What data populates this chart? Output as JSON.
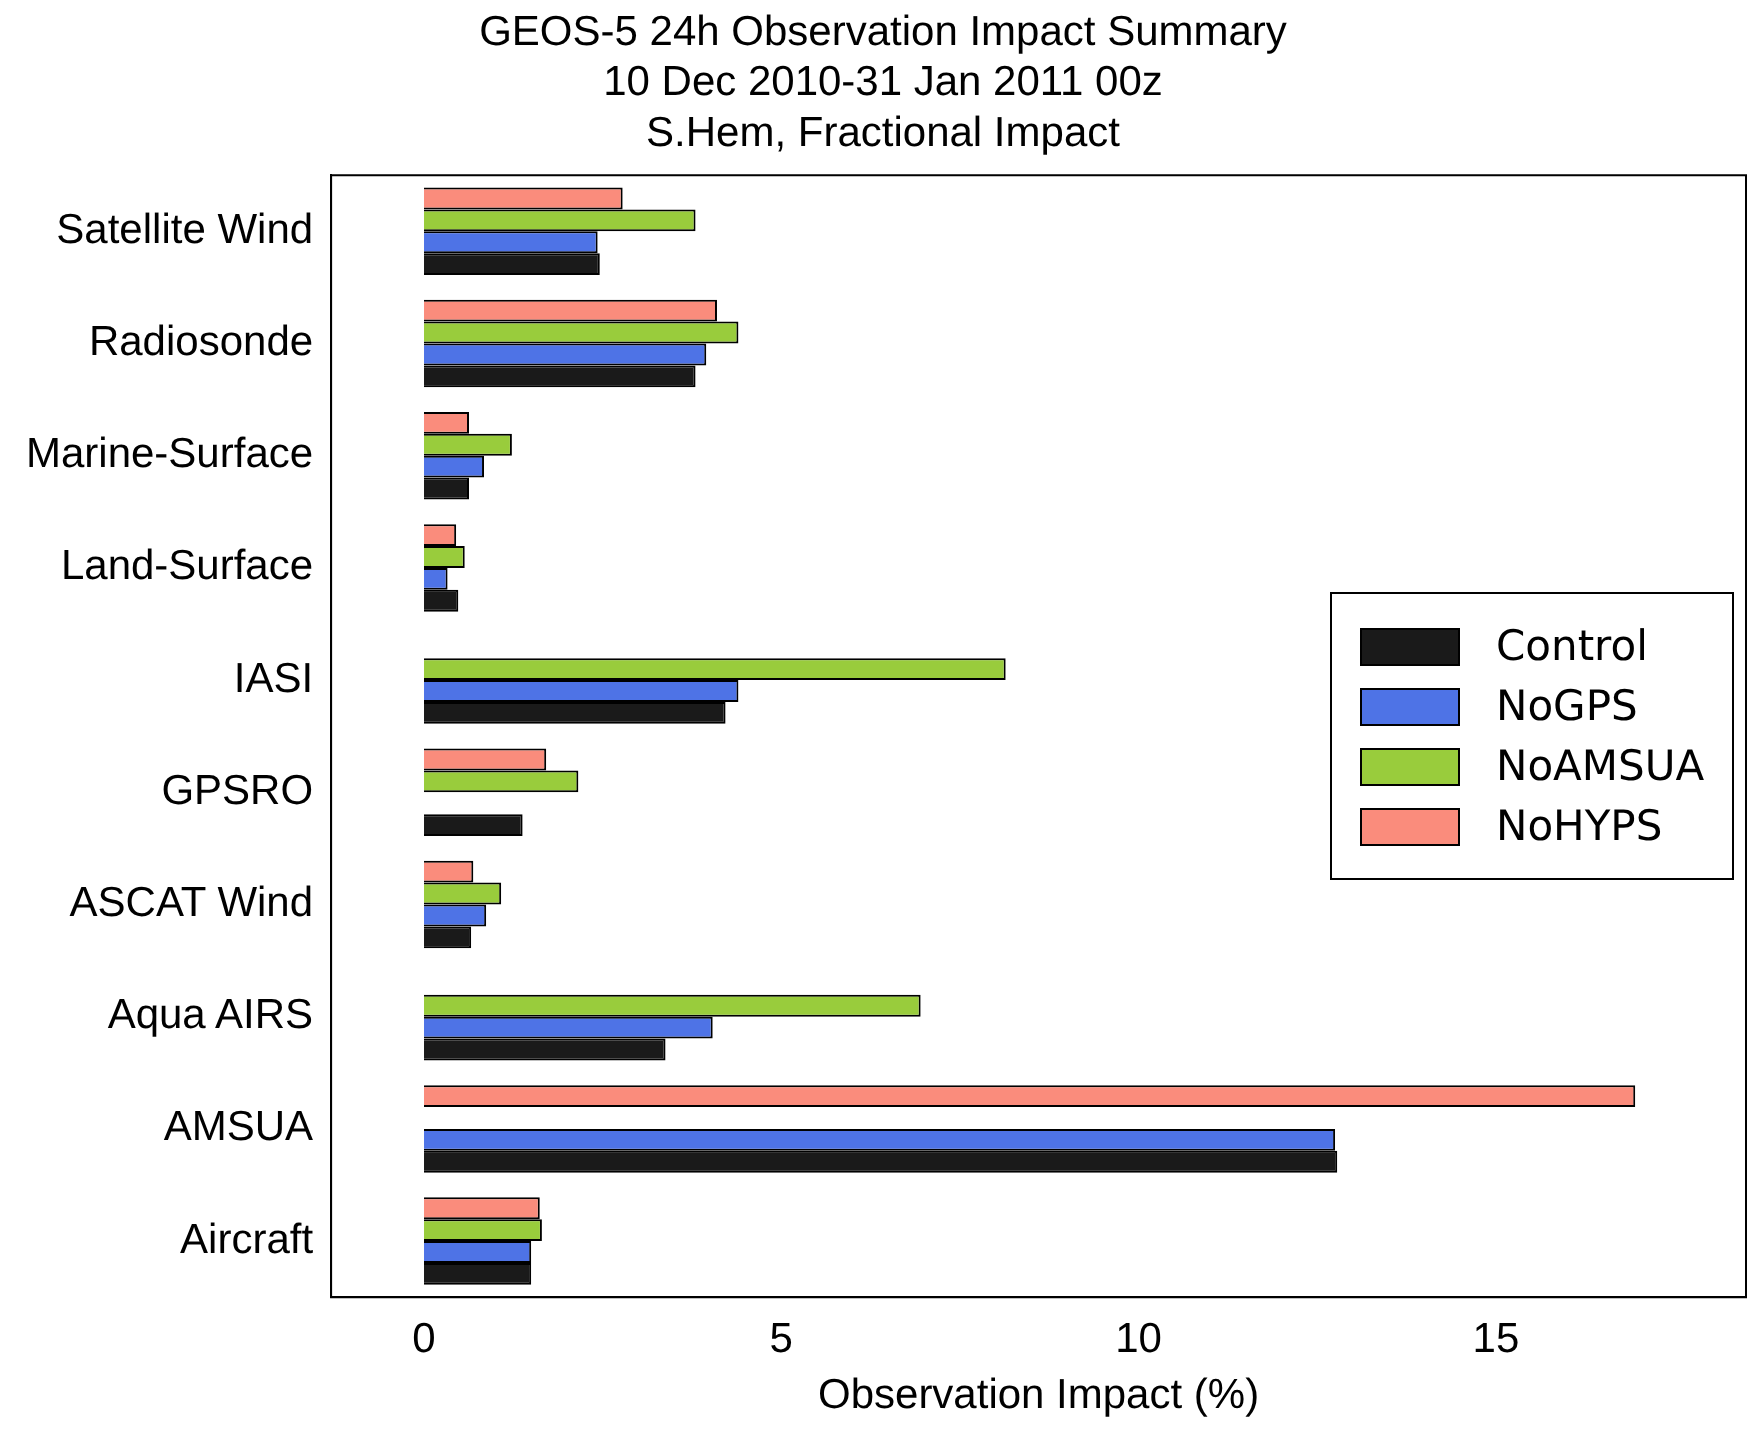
{
  "chart_data": {
    "type": "bar",
    "orientation": "horizontal",
    "title": "GEOS-5 24h Observation Impact Summary",
    "subtitle": "10 Dec 2010-31 Jan 2011 00z\nS.Hem, Fractional Impact",
    "xlabel": "Observation Impact (%)",
    "categories": [
      "Satellite Wind",
      "Radiosonde",
      "Marine-Surface",
      "Land-Surface",
      "IASI",
      "GPSRO",
      "ASCAT Wind",
      "Aqua AIRS",
      "AMSUA",
      "Aircraft"
    ],
    "series": [
      {
        "name": "Control",
        "color": "#1a1a1a",
        "values": [
          2.46,
          3.8,
          0.63,
          0.48,
          4.22,
          1.38,
          0.66,
          3.38,
          12.78,
          1.5
        ]
      },
      {
        "name": "NoGPS",
        "color": "#4e73e6",
        "values": [
          2.43,
          3.95,
          0.84,
          0.33,
          4.4,
          null,
          0.87,
          4.04,
          12.75,
          1.5
        ]
      },
      {
        "name": "NoAMSUA",
        "color": "#99cc3c",
        "values": [
          3.8,
          4.4,
          1.23,
          0.57,
          8.14,
          2.16,
          1.08,
          6.95,
          null,
          1.65
        ]
      },
      {
        "name": "NoHYPS",
        "color": "#fa8c7c",
        "values": [
          2.78,
          4.1,
          0.63,
          0.45,
          null,
          1.71,
          0.69,
          null,
          16.95,
          1.62
        ]
      }
    ],
    "xlim": [
      -1.3,
      18.5
    ],
    "xticks": [
      0,
      5,
      10,
      15
    ],
    "grid": false,
    "legend": "right"
  }
}
